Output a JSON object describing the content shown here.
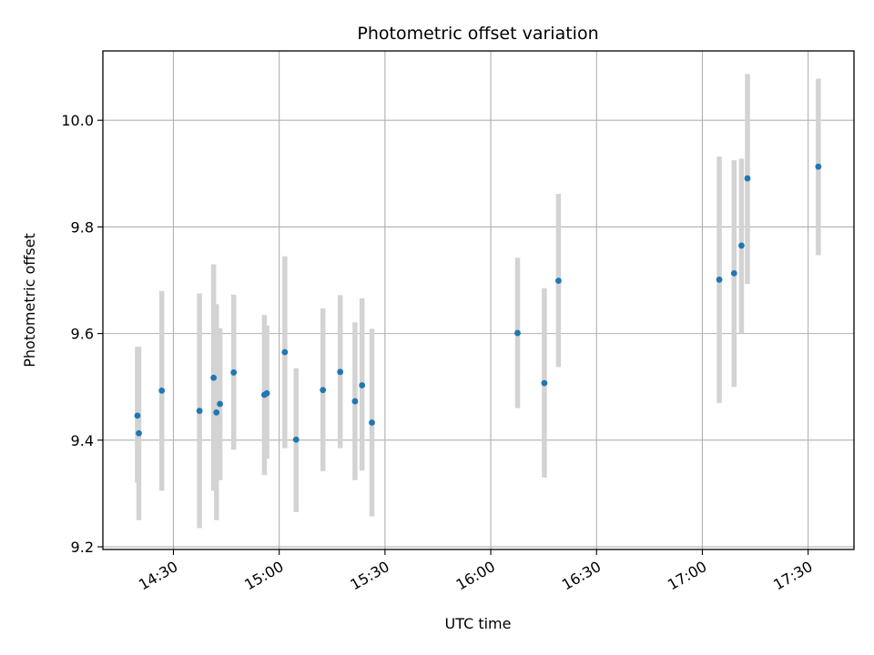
{
  "chart_data": {
    "type": "scatter",
    "title": "Photometric offset variation",
    "xlabel": "UTC time",
    "ylabel": "Photometric offset",
    "x_axis": "time",
    "xlim": [
      "14:10",
      "17:43"
    ],
    "ylim": [
      9.195,
      10.13
    ],
    "x_ticks": [
      "14:30",
      "15:00",
      "15:30",
      "16:00",
      "16:30",
      "17:00",
      "17:30"
    ],
    "y_ticks": [
      "9.2",
      "9.4",
      "9.6",
      "9.8",
      "10.0"
    ],
    "grid": true,
    "errorbar_color": "#d3d3d3",
    "point_color": "#1f77b4",
    "series": [
      {
        "x": [
          "14:19:48",
          "14:20:12",
          "14:26:42",
          "14:37:24",
          "14:41:24",
          "14:42:12",
          "14:43:12",
          "14:47:06",
          "14:55:48",
          "14:56:30",
          "15:01:36",
          "15:04:48",
          "15:12:24",
          "15:17:18",
          "15:21:30",
          "15:23:30",
          "15:26:18",
          "16:07:36",
          "16:15:12",
          "16:19:12",
          "17:04:48",
          "17:09:00",
          "17:11:06",
          "17:12:48",
          "17:32:54"
        ],
        "y": [
          9.446,
          9.413,
          9.493,
          9.455,
          9.517,
          9.452,
          9.468,
          9.527,
          9.485,
          9.488,
          9.565,
          9.401,
          9.494,
          9.528,
          9.473,
          9.503,
          9.433,
          9.601,
          9.507,
          9.699,
          9.701,
          9.713,
          9.765,
          9.891,
          9.913
        ],
        "err_low": [
          9.32,
          9.25,
          9.305,
          9.235,
          9.305,
          9.25,
          9.325,
          9.382,
          9.335,
          9.365,
          9.385,
          9.265,
          9.342,
          9.385,
          9.325,
          9.343,
          9.257,
          9.46,
          9.33,
          9.537,
          9.47,
          9.5,
          9.6,
          9.693,
          9.747
        ],
        "err_high": [
          9.575,
          9.575,
          9.68,
          9.675,
          9.73,
          9.655,
          9.61,
          9.673,
          9.635,
          9.615,
          9.745,
          9.535,
          9.647,
          9.672,
          9.621,
          9.666,
          9.609,
          9.742,
          9.685,
          9.862,
          9.932,
          9.925,
          9.928,
          10.087,
          10.078
        ]
      }
    ]
  }
}
